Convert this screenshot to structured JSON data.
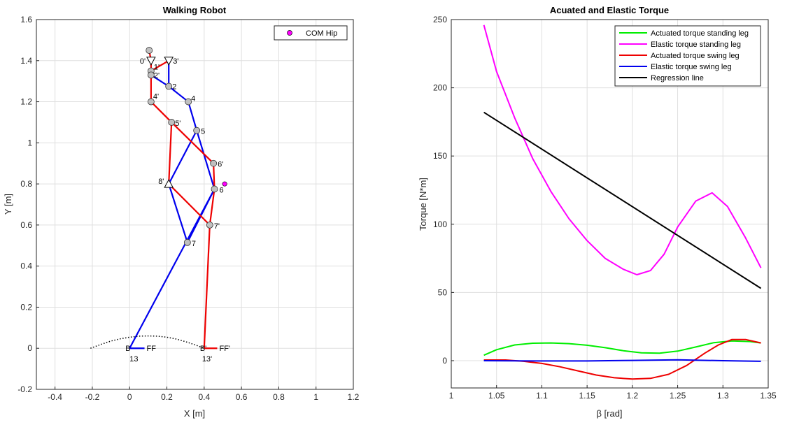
{
  "chart_data": [
    {
      "type": "line",
      "title": "Walking Robot",
      "xlabel": "X [m]",
      "ylabel": "Y [m]",
      "xlim": [
        -0.5,
        1.2
      ],
      "ylim": [
        -0.2,
        1.6
      ],
      "xticks": [
        -0.4,
        -0.2,
        0,
        0.2,
        0.4,
        0.6,
        0.8,
        1,
        1.2
      ],
      "xticklabels": [
        "-0.4",
        "-0.2",
        "0",
        "0.2",
        "0.4",
        "0.6",
        "0.8",
        "1",
        "1.2"
      ],
      "yticks": [
        -0.2,
        0,
        0.2,
        0.4,
        0.6,
        0.8,
        1,
        1.2,
        1.4,
        1.6
      ],
      "yticklabels": [
        "-0.2",
        "0",
        "0.2",
        "0.4",
        "0.6",
        "0.8",
        "1",
        "1.2",
        "1.4",
        "1.6"
      ],
      "grid": true,
      "legend": {
        "location": "top-right",
        "entries": [
          "COM Hip"
        ]
      },
      "colors": {
        "leg_blue": "#0000ee",
        "leg_red": "#ee0000",
        "node": "#c0c0c0",
        "com": "#ff00ff"
      },
      "com_hip": {
        "name": "COM Hip",
        "x": 0.51,
        "y": 0.8
      },
      "hip_top": {
        "x": 0.105,
        "y": 1.45
      },
      "nodes": [
        {
          "label": "0'",
          "x": 0.115,
          "y": 1.4,
          "shape": "triangle-down"
        },
        {
          "label": "3'",
          "x": 0.21,
          "y": 1.4,
          "shape": "triangle-down"
        },
        {
          "label": "1'",
          "x": 0.115,
          "y": 1.35,
          "shape": "circle"
        },
        {
          "label": "2'",
          "x": 0.115,
          "y": 1.33,
          "shape": "circle"
        },
        {
          "label": "2",
          "x": 0.21,
          "y": 1.275,
          "shape": "circle"
        },
        {
          "label": "4",
          "x": 0.315,
          "y": 1.2,
          "shape": "circle"
        },
        {
          "label": "4'",
          "x": 0.115,
          "y": 1.2,
          "shape": "circle"
        },
        {
          "label": "5'",
          "x": 0.225,
          "y": 1.1,
          "shape": "circle"
        },
        {
          "label": "5",
          "x": 0.36,
          "y": 1.06,
          "shape": "circle"
        },
        {
          "label": "6'",
          "x": 0.45,
          "y": 0.9,
          "shape": "circle"
        },
        {
          "label": "8'",
          "x": 0.21,
          "y": 0.8,
          "shape": "triangle-up"
        },
        {
          "label": "6",
          "x": 0.455,
          "y": 0.775,
          "shape": "circle"
        },
        {
          "label": "7'",
          "x": 0.43,
          "y": 0.6,
          "shape": "circle"
        },
        {
          "label": "7",
          "x": 0.31,
          "y": 0.515,
          "shape": "circle"
        },
        {
          "label": "B",
          "x": 0.0,
          "y": 0.0,
          "shape": "none"
        },
        {
          "label": "FF",
          "x": 0.08,
          "y": 0.0,
          "shape": "none"
        },
        {
          "label": "13",
          "x": 0.0,
          "y": -0.02,
          "shape": "none"
        },
        {
          "label": "B'",
          "x": 0.4,
          "y": 0.0,
          "shape": "none"
        },
        {
          "label": "FF'",
          "x": 0.47,
          "y": 0.0,
          "shape": "none"
        },
        {
          "label": "13'",
          "x": 0.4,
          "y": -0.02,
          "shape": "none"
        }
      ],
      "links": {
        "blue": [
          [
            [
              0.21,
              1.4
            ],
            [
              0.21,
              1.275
            ]
          ],
          [
            [
              0.21,
              1.275
            ],
            [
              0.115,
              1.33
            ]
          ],
          [
            [
              0.21,
              1.275
            ],
            [
              0.315,
              1.2
            ]
          ],
          [
            [
              0.315,
              1.2
            ],
            [
              0.36,
              1.06
            ]
          ],
          [
            [
              0.36,
              1.06
            ],
            [
              0.21,
              0.8
            ]
          ],
          [
            [
              0.36,
              1.06
            ],
            [
              0.455,
              0.775
            ]
          ],
          [
            [
              0.21,
              0.8
            ],
            [
              0.31,
              0.515
            ]
          ],
          [
            [
              0.455,
              0.775
            ],
            [
              0.31,
              0.515
            ]
          ],
          [
            [
              0.455,
              0.775
            ],
            [
              0.0,
              0.0
            ]
          ],
          [
            [
              0.0,
              0.0
            ],
            [
              0.08,
              0.0
            ]
          ]
        ],
        "red": [
          [
            [
              0.105,
              1.45
            ],
            [
              0.115,
              1.4
            ]
          ],
          [
            [
              0.115,
              1.4
            ],
            [
              0.115,
              1.2
            ]
          ],
          [
            [
              0.115,
              1.35
            ],
            [
              0.21,
              1.4
            ]
          ],
          [
            [
              0.115,
              1.2
            ],
            [
              0.225,
              1.1
            ]
          ],
          [
            [
              0.225,
              1.1
            ],
            [
              0.45,
              0.9
            ]
          ],
          [
            [
              0.225,
              1.1
            ],
            [
              0.21,
              0.8
            ]
          ],
          [
            [
              0.45,
              0.9
            ],
            [
              0.455,
              0.775
            ]
          ],
          [
            [
              0.21,
              0.8
            ],
            [
              0.43,
              0.6
            ]
          ],
          [
            [
              0.455,
              0.775
            ],
            [
              0.43,
              0.6
            ]
          ],
          [
            [
              0.43,
              0.6
            ],
            [
              0.4,
              0.0
            ]
          ],
          [
            [
              0.4,
              0.0
            ],
            [
              0.47,
              0.0
            ]
          ]
        ]
      },
      "foot_trajectory": {
        "x": [
          -0.21,
          -0.15,
          -0.1,
          -0.05,
          0.0,
          0.05,
          0.1,
          0.15,
          0.2,
          0.25,
          0.3,
          0.35,
          0.4
        ],
        "y": [
          0.0,
          0.02,
          0.035,
          0.046,
          0.054,
          0.059,
          0.06,
          0.059,
          0.054,
          0.045,
          0.032,
          0.017,
          0.0
        ]
      }
    },
    {
      "type": "line",
      "title": "Acuated and Elastic Torque",
      "xlabel": "β [rad]",
      "ylabel": "Torque [N*m]",
      "xlim": [
        1.0,
        1.35
      ],
      "ylim": [
        -20,
        250
      ],
      "xticks": [
        1,
        1.05,
        1.1,
        1.15,
        1.2,
        1.25,
        1.3,
        1.35
      ],
      "xticklabels": [
        "1",
        "1.05",
        "1.1",
        "1.15",
        "1.2",
        "1.25",
        "1.3",
        "1.35"
      ],
      "yticks": [
        0,
        50,
        100,
        150,
        200,
        250
      ],
      "yticklabels": [
        "0",
        "50",
        "100",
        "150",
        "200",
        "250"
      ],
      "grid": true,
      "legend": {
        "location": "top-right"
      },
      "series": [
        {
          "name": "Actuated torque standing leg",
          "color": "#00ee00",
          "x": [
            1.036,
            1.05,
            1.07,
            1.09,
            1.11,
            1.13,
            1.15,
            1.17,
            1.19,
            1.21,
            1.23,
            1.25,
            1.27,
            1.29,
            1.31,
            1.33,
            1.342
          ],
          "y": [
            4,
            8,
            11.5,
            12.8,
            13,
            12.5,
            11.3,
            9.5,
            7.3,
            5.7,
            5.5,
            7,
            10,
            13.2,
            14.5,
            14,
            13
          ]
        },
        {
          "name": "Elastic torque standing leg",
          "color": "#ff00ff",
          "x": [
            1.036,
            1.05,
            1.07,
            1.09,
            1.11,
            1.13,
            1.15,
            1.17,
            1.19,
            1.205,
            1.22,
            1.235,
            1.25,
            1.27,
            1.288,
            1.305,
            1.325,
            1.342
          ],
          "y": [
            246,
            212,
            178,
            148,
            124,
            104,
            88,
            75,
            67,
            63,
            66,
            78,
            98,
            117,
            123,
            113,
            90,
            68
          ]
        },
        {
          "name": "Actuated torque swing leg",
          "color": "#ee0000",
          "x": [
            1.036,
            1.06,
            1.08,
            1.1,
            1.12,
            1.14,
            1.16,
            1.18,
            1.2,
            1.22,
            1.24,
            1.26,
            1.28,
            1.295,
            1.31,
            1.325,
            1.342
          ],
          "y": [
            0.5,
            0.5,
            -0.5,
            -2,
            -4.5,
            -7.5,
            -10.5,
            -12.5,
            -13.5,
            -13,
            -10,
            -3.5,
            5.5,
            11.5,
            15.5,
            15.5,
            13
          ]
        },
        {
          "name": "Elastic torque swing leg",
          "color": "#0000ee",
          "x": [
            1.036,
            1.1,
            1.15,
            1.2,
            1.25,
            1.3,
            1.342
          ],
          "y": [
            0,
            -0.2,
            -0.2,
            0.2,
            0.6,
            0,
            -0.5
          ]
        },
        {
          "name": "Regression line",
          "color": "#000000",
          "x": [
            1.036,
            1.342
          ],
          "y": [
            182,
            53
          ]
        }
      ]
    }
  ]
}
